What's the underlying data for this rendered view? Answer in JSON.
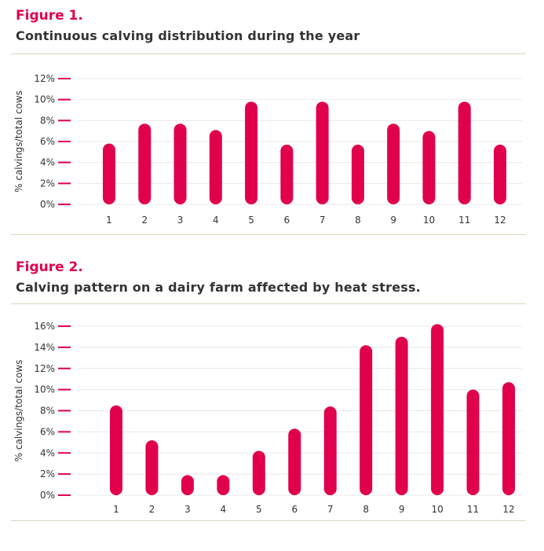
{
  "figures": [
    {
      "label": "Figure 1.",
      "title": "Continuous calving distribution during the year"
    },
    {
      "label": "Figure 2.",
      "title": "Calving pattern on a dairy farm affected by heat stress."
    }
  ],
  "colors": {
    "bar": "#e0004d",
    "label": "#e0004d",
    "grid": "#e8e8e8",
    "rule": "#d8d8bc"
  },
  "chart_data": [
    {
      "type": "bar",
      "title": "Continuous calving distribution during the year",
      "ylabel": "% calvings/total cows",
      "xlabel": "",
      "categories": [
        "1",
        "2",
        "3",
        "4",
        "5",
        "6",
        "7",
        "8",
        "9",
        "10",
        "11",
        "12"
      ],
      "values": [
        5.8,
        7.7,
        7.7,
        7.1,
        9.8,
        5.7,
        9.8,
        5.7,
        7.7,
        7.0,
        9.8,
        5.7
      ],
      "yticks": [
        "0%",
        "2%",
        "4%",
        "6%",
        "8%",
        "10%",
        "12%"
      ],
      "ylim": [
        0,
        12
      ],
      "grid": true
    },
    {
      "type": "bar",
      "title": "Calving pattern on a dairy farm affected by heat stress.",
      "ylabel": "% calvings/total cows",
      "xlabel": "",
      "categories": [
        "1",
        "2",
        "3",
        "4",
        "5",
        "6",
        "7",
        "8",
        "9",
        "10",
        "11",
        "12"
      ],
      "values": [
        8.5,
        5.2,
        1.9,
        1.9,
        4.2,
        6.3,
        8.4,
        14.2,
        15.0,
        16.2,
        10.0,
        10.7
      ],
      "yticks": [
        "0%",
        "2%",
        "4%",
        "6%",
        "8%",
        "10%",
        "12%",
        "14%",
        "16%"
      ],
      "ylim": [
        0,
        16
      ],
      "grid": true
    }
  ]
}
